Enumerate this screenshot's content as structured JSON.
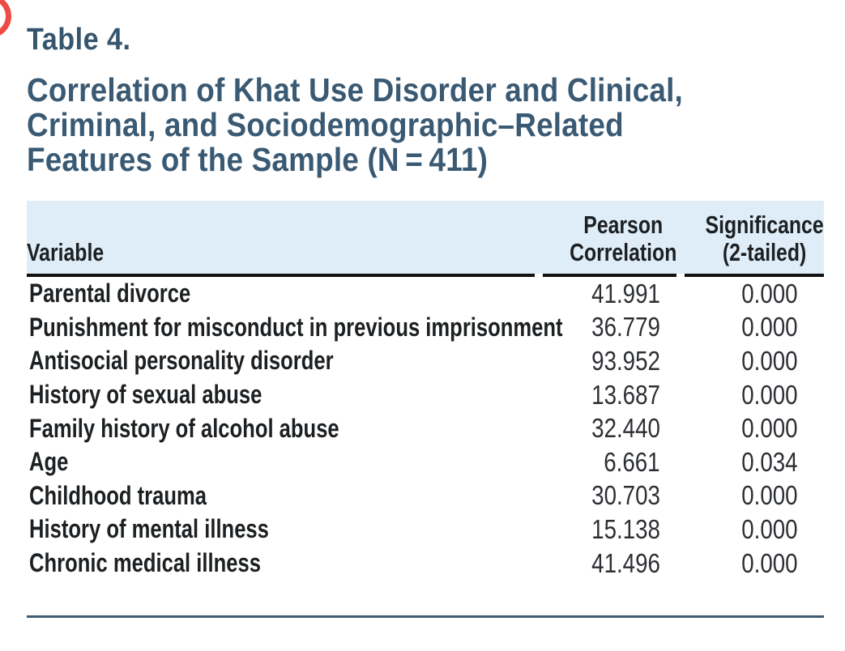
{
  "page": {
    "table_label": "Table 4.",
    "title_lines": [
      "Correlation of Khat Use Disorder and Clinical,",
      "Criminal, and Sociodemographic–Related",
      "Features of the Sample (N = 411)"
    ],
    "accent_color": "#3a5a74",
    "header_bg_color": "#dfedf8",
    "red_mark_color": "#ed4b47",
    "bottom_rule_color": "#3e5b73"
  },
  "table": {
    "columns": [
      {
        "key": "variable",
        "label": "Variable"
      },
      {
        "key": "pearson",
        "label_lines": [
          "Pearson",
          "Correlation"
        ]
      },
      {
        "key": "significance",
        "label_lines": [
          "Significance",
          "(2-tailed)"
        ]
      }
    ],
    "rows": [
      {
        "variable": "Parental divorce",
        "pearson": "41.991",
        "significance": "0.000"
      },
      {
        "variable": "Punishment for misconduct in previous imprisonment",
        "pearson": "36.779",
        "significance": "0.000"
      },
      {
        "variable": "Antisocial personality disorder",
        "pearson": "93.952",
        "significance": "0.000"
      },
      {
        "variable": "History of sexual abuse",
        "pearson": "13.687",
        "significance": "0.000"
      },
      {
        "variable": "Family history of alcohol abuse",
        "pearson": "32.440",
        "significance": "0.000"
      },
      {
        "variable": "Age",
        "pearson": "6.661",
        "significance": "0.034"
      },
      {
        "variable": "Childhood trauma",
        "pearson": "30.703",
        "significance": "0.000"
      },
      {
        "variable": "History of mental illness",
        "pearson": "15.138",
        "significance": "0.000"
      },
      {
        "variable": "Chronic medical illness",
        "pearson": "41.496",
        "significance": "0.000"
      }
    ]
  },
  "chart_data": {
    "type": "table",
    "title": "Correlation of Khat Use Disorder and Clinical, Criminal, and Sociodemographic–Related Features of the Sample (N = 411)",
    "columns": [
      "Variable",
      "Pearson Correlation",
      "Significance (2-tailed)"
    ],
    "rows": [
      [
        "Parental divorce",
        41.991,
        0.0
      ],
      [
        "Punishment for misconduct in previous imprisonment",
        36.779,
        0.0
      ],
      [
        "Antisocial personality disorder",
        93.952,
        0.0
      ],
      [
        "History of sexual abuse",
        13.687,
        0.0
      ],
      [
        "Family history of alcohol abuse",
        32.44,
        0.0
      ],
      [
        "Age",
        6.661,
        0.034
      ],
      [
        "Childhood trauma",
        30.703,
        0.0
      ],
      [
        "History of mental illness",
        15.138,
        0.0
      ],
      [
        "Chronic medical illness",
        41.496,
        0.0
      ]
    ]
  }
}
